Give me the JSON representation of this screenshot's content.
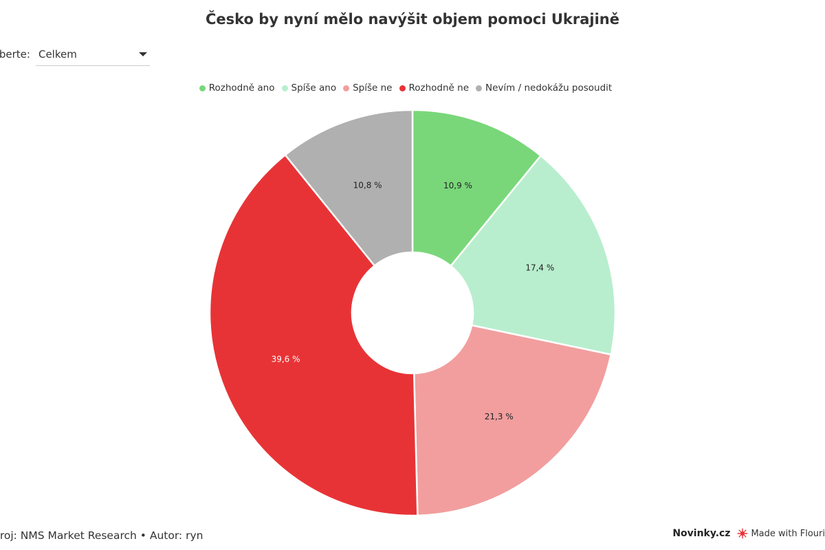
{
  "chart_data": {
    "type": "pie",
    "variant": "donut",
    "title": "Česko by nyní mělo navýšit objem pomoci Ukrajině",
    "categories": [
      "Rozhodně ano",
      "Spíše ano",
      "Spíše ne",
      "Rozhodně ne",
      "Nevím / nedokážu posoudit"
    ],
    "values": [
      10.9,
      17.4,
      21.3,
      39.6,
      10.8
    ],
    "data_labels": [
      "10,9 %",
      "17,4 %",
      "21,3 %",
      "39,6 %",
      "10,8 %"
    ],
    "colors": [
      "#79d77a",
      "#b8eece",
      "#f29e9e",
      "#e83336",
      "#b0b0b0"
    ],
    "label_colors": [
      "#222222",
      "#222222",
      "#222222",
      "#ffffff",
      "#222222"
    ],
    "legend_position": "top-center"
  },
  "filter": {
    "label": "yberte:",
    "selected": "Celkem"
  },
  "footer": {
    "source": "droj: NMS Market Research • Autor: ryn",
    "brand": "Novinky.cz",
    "made_with": "Made with Flouri"
  },
  "icons": {
    "dropdown": "chevron-down-icon",
    "flourish": "flourish-logo-icon"
  }
}
